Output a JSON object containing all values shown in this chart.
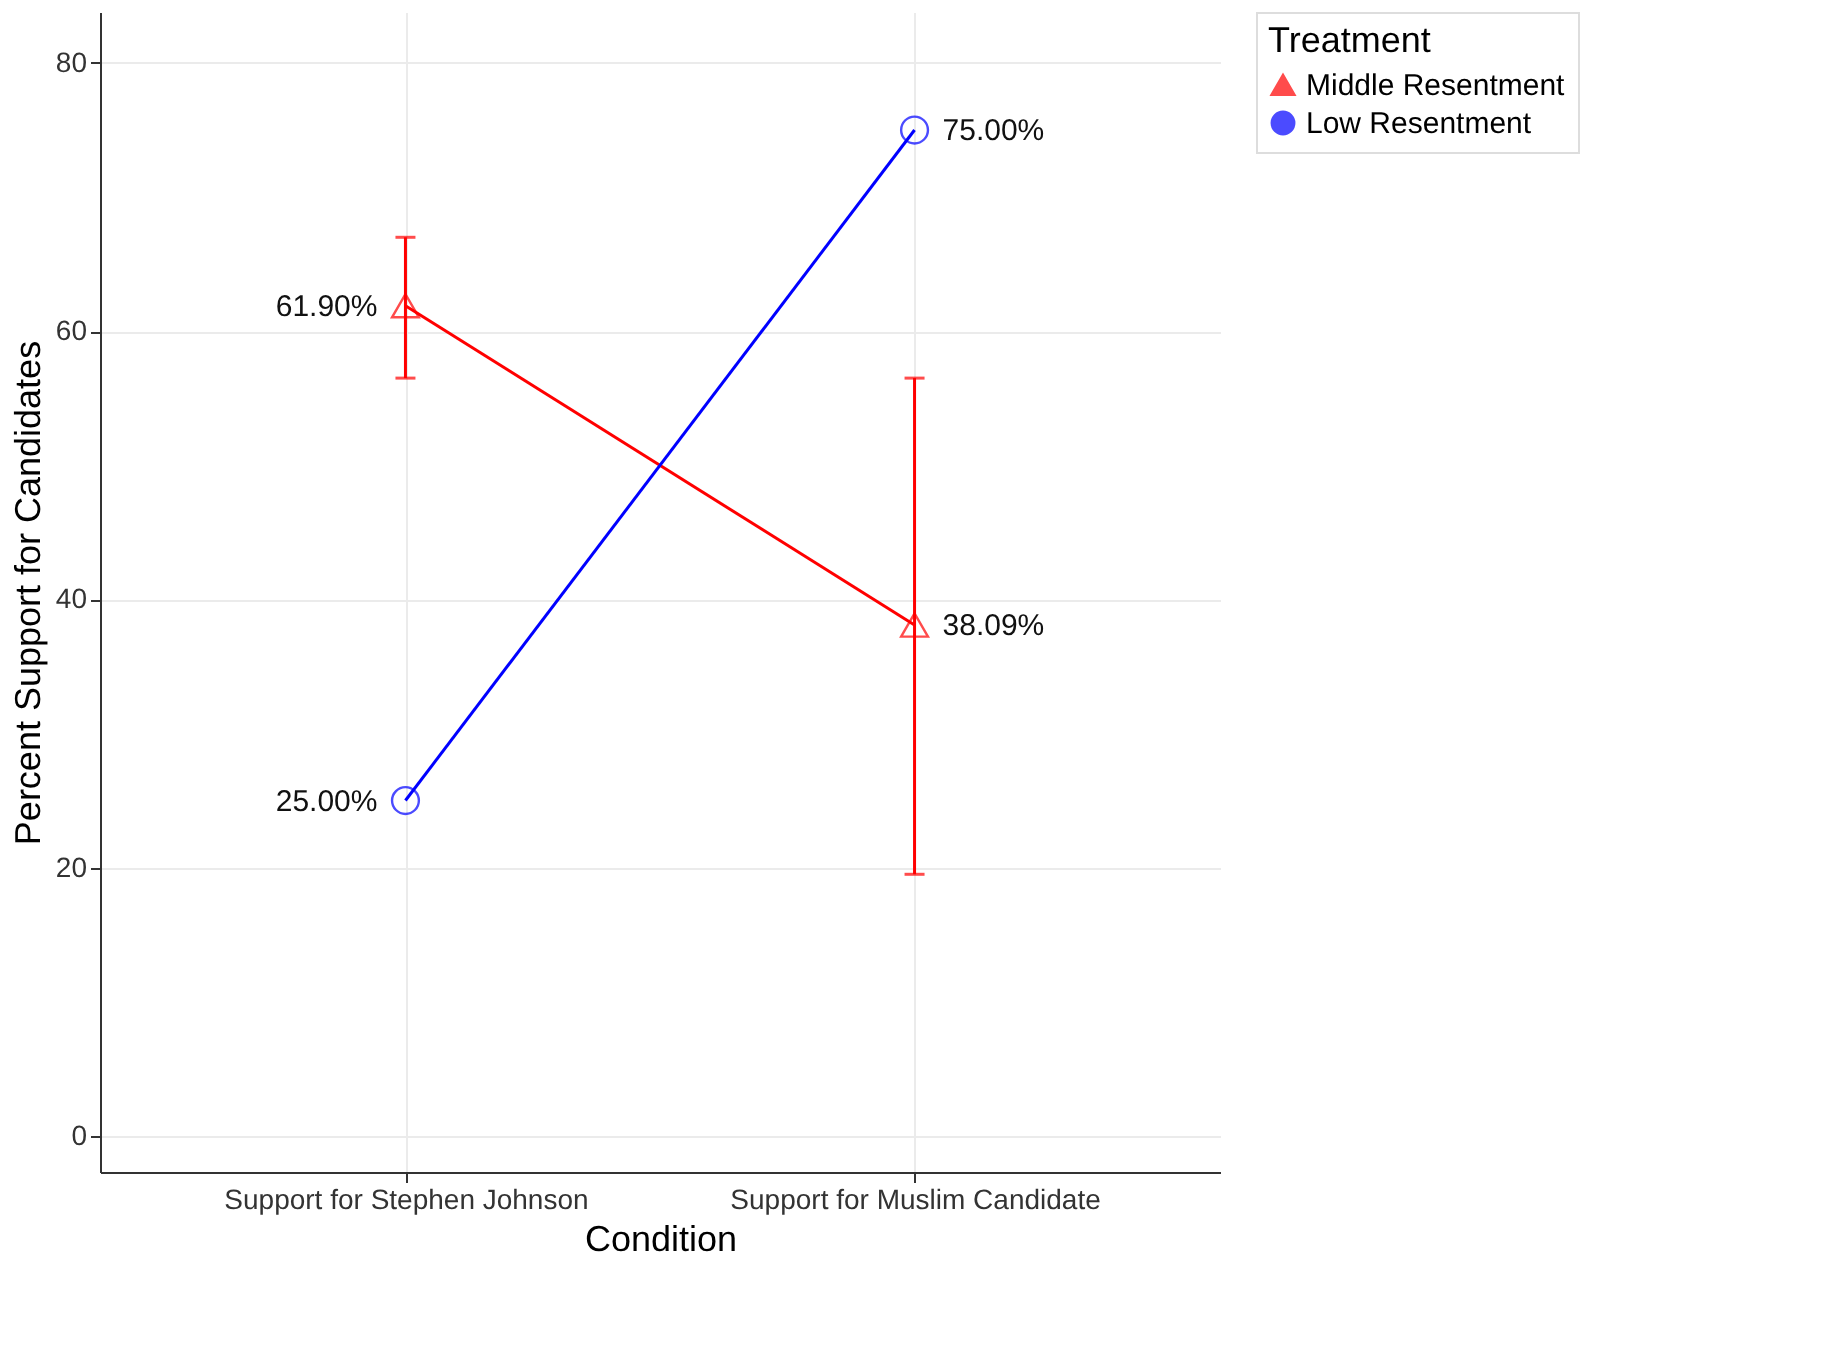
{
  "chart_data": {
    "type": "line",
    "xlabel": "Condition",
    "ylabel": "Percent Support for Candidates",
    "legend_title": "Treatment",
    "categories": [
      "Support for Stephen Johnson",
      "Support for Muslim Candidate"
    ],
    "series": [
      {
        "name": "Middle Resentment",
        "color": "#ff0000",
        "marker": "triangle",
        "values": [
          61.9,
          38.09
        ],
        "errors": [
          [
            56.5,
            67.0
          ],
          [
            19.5,
            56.5
          ]
        ],
        "value_labels": [
          "61.90%",
          "38.09%"
        ]
      },
      {
        "name": "Low Resentment",
        "color": "#0000ff",
        "marker": "circle",
        "values": [
          25.0,
          75.0
        ],
        "value_labels": [
          "25.00%",
          "75.00%"
        ]
      }
    ],
    "ylim": [
      -2.7,
      83.8
    ],
    "yticks": [
      0,
      20,
      40,
      60,
      80
    ],
    "grid": true,
    "legend": "right",
    "line_style": "solid"
  }
}
